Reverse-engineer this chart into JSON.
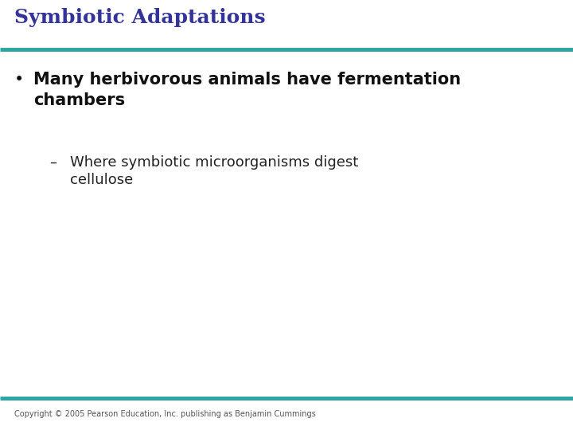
{
  "title": "Symbiotic Adaptations",
  "title_color": "#333399",
  "title_fontsize": 18,
  "header_line_color": "#2aa5a0",
  "footer_line_color": "#2aa5a0",
  "background_color": "#ffffff",
  "bullet1_line1": "Many herbivorous animals have fermentation",
  "bullet1_line2": "chambers",
  "bullet1_fontsize": 15,
  "bullet_color": "#111111",
  "subbullet1_line1": "Where symbiotic microorganisms digest",
  "subbullet1_line2": "cellulose",
  "subbullet1_fontsize": 13,
  "subbullet_color": "#222222",
  "copyright_text": "Copyright © 2005 Pearson Education, Inc. publishing as Benjamin Cummings",
  "copyright_fontsize": 7,
  "copyright_color": "#555555"
}
